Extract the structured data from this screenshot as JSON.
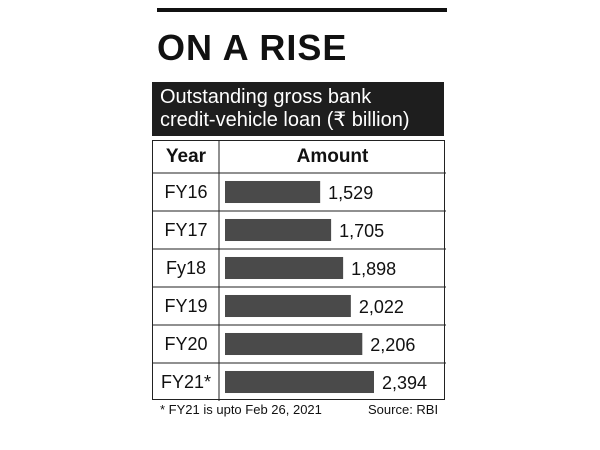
{
  "title": "ON A RISE",
  "subtitle_line1": "Outstanding gross bank",
  "subtitle_line2": "credit-vehicle loan (₹ billion)",
  "table": {
    "year_header": "Year",
    "amount_header": "Amount"
  },
  "footnote": "* FY21 is upto Feb 26, 2021",
  "source": "Source: RBI",
  "colors": {
    "bar": "#4a4a4a",
    "header_bg": "#1e1e1e",
    "grid": "#222222"
  },
  "chart_data": {
    "type": "bar",
    "orientation": "horizontal",
    "categories": [
      "FY16",
      "FY17",
      "Fy18",
      "FY19",
      "FY20",
      "FY21*"
    ],
    "values": [
      1529,
      1705,
      1898,
      2022,
      2206,
      2394
    ],
    "value_labels": [
      "1,529",
      "1,705",
      "1,898",
      "2,022",
      "2,206",
      "2,394"
    ],
    "xlim": [
      0,
      2394
    ],
    "grid": true
  }
}
